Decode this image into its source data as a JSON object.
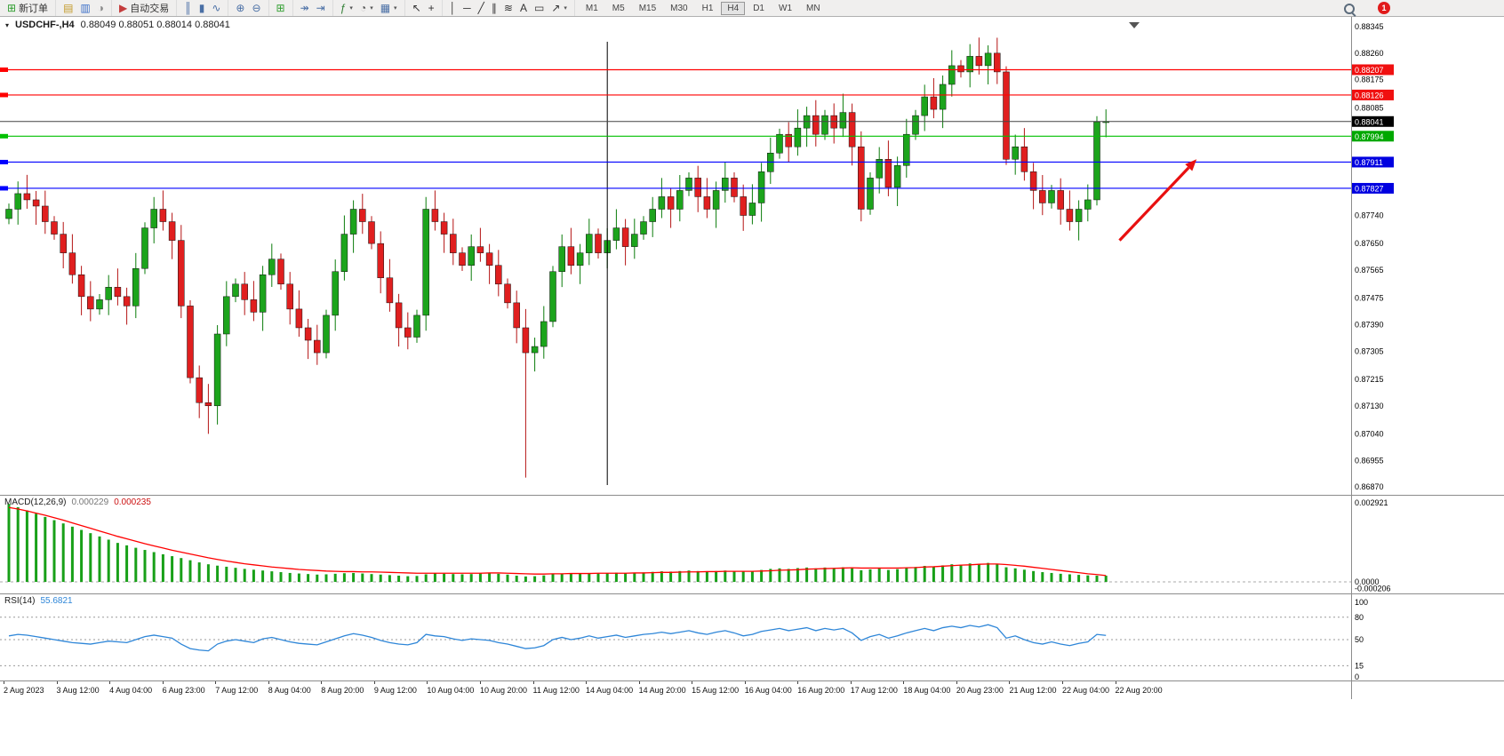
{
  "toolbar": {
    "notification_count": "1",
    "active_timeframe": "H4",
    "timeframes": [
      "M1",
      "M5",
      "M15",
      "M30",
      "H1",
      "H4",
      "D1",
      "W1",
      "MN"
    ],
    "groups": [
      {
        "items": [
          {
            "name": "new-order-button",
            "label": "新订单",
            "glyph": "⊞",
            "color": "#2f9e2f"
          }
        ]
      },
      {
        "items": [
          {
            "name": "charts-button",
            "glyph": "▤",
            "color": "#c39a2a"
          },
          {
            "name": "profiles-button",
            "glyph": "▥",
            "color": "#3b6fc9"
          },
          {
            "name": "refresh-button",
            "glyph": "◑",
            "color": "#8a8a8a"
          }
        ]
      },
      {
        "items": [
          {
            "name": "auto-trading-button",
            "label": "自动交易",
            "glyph": "▶",
            "color": "#c43c3c"
          }
        ]
      },
      {
        "items": [
          {
            "name": "bar-chart-button",
            "glyph": "║",
            "color": "#4a6fa5"
          },
          {
            "name": "candlestick-chart-button",
            "glyph": "▮",
            "color": "#4a6fa5"
          },
          {
            "name": "line-chart-button",
            "glyph": "∿",
            "color": "#4a6fa5"
          }
        ]
      },
      {
        "items": [
          {
            "name": "zoom-in-button",
            "glyph": "⊕",
            "color": "#4a6fa5"
          },
          {
            "name": "zoom-out-button",
            "glyph": "⊖",
            "color": "#4a6fa5"
          }
        ]
      },
      {
        "items": [
          {
            "name": "tile-windows-button",
            "glyph": "⊞",
            "color": "#2f9e2f"
          }
        ]
      },
      {
        "items": [
          {
            "name": "auto-scroll-button",
            "glyph": "↠",
            "color": "#4a6fa5"
          },
          {
            "name": "chart-shift-button",
            "glyph": "⇥",
            "color": "#4a6fa5"
          }
        ]
      },
      {
        "items": [
          {
            "name": "indicators-button",
            "glyph": "ƒ",
            "color": "#2e7d32",
            "dropdown": true
          },
          {
            "name": "periods-button",
            "glyph": "◔",
            "color": "#555555",
            "dropdown": true
          },
          {
            "name": "templates-button",
            "glyph": "▦",
            "color": "#4a6fa5",
            "dropdown": true
          }
        ]
      },
      {
        "items": [
          {
            "name": "cursor-button",
            "glyph": "↖",
            "color": "#333333"
          },
          {
            "name": "crosshair-button",
            "glyph": "+",
            "color": "#333333"
          }
        ]
      },
      {
        "items": [
          {
            "name": "vertical-line-button",
            "glyph": "│",
            "color": "#333333"
          },
          {
            "name": "horizontal-line-button",
            "glyph": "─",
            "color": "#333333"
          },
          {
            "name": "trendline-button",
            "glyph": "╱",
            "color": "#333333"
          },
          {
            "name": "channel-button",
            "glyph": "∥",
            "color": "#333333"
          },
          {
            "name": "fibonacci-button",
            "glyph": "≋",
            "color": "#333333"
          },
          {
            "name": "text-button",
            "glyph": "A",
            "color": "#333333"
          },
          {
            "name": "label-button",
            "glyph": "▭",
            "color": "#333333"
          },
          {
            "name": "arrows-button",
            "glyph": "↗",
            "color": "#333333",
            "dropdown": true
          }
        ]
      }
    ]
  },
  "chart_data": {
    "type": "candlestick",
    "symbol_title": "USDCHF-,H4",
    "timeframe": "H4",
    "ohlc_display": "0.88049  0.88051  0.88014  0.88041",
    "price_axis_labels": [
      "0.88345",
      "0.88260",
      "0.88175",
      "0.88085",
      "0.87740",
      "0.87650",
      "0.87565",
      "0.87475",
      "0.87390",
      "0.87305",
      "0.87215",
      "0.87130",
      "0.87040",
      "0.86955",
      "0.86870"
    ],
    "first_open": 0.8773,
    "wick": 0.0003,
    "closes": [
      0.8776,
      0.8781,
      0.8779,
      0.8777,
      0.8772,
      0.8768,
      0.8762,
      0.8755,
      0.8748,
      0.8744,
      0.8747,
      0.8751,
      0.8748,
      0.8745,
      0.8757,
      0.877,
      0.8776,
      0.8772,
      0.8766,
      0.8745,
      0.8722,
      0.8714,
      0.8713,
      0.8736,
      0.8748,
      0.8752,
      0.8747,
      0.8743,
      0.8755,
      0.876,
      0.8752,
      0.8744,
      0.8738,
      0.8734,
      0.873,
      0.8742,
      0.8756,
      0.8768,
      0.8776,
      0.8772,
      0.8765,
      0.8754,
      0.8746,
      0.8738,
      0.8735,
      0.8742,
      0.8776,
      0.8772,
      0.8768,
      0.8762,
      0.8758,
      0.8764,
      0.8762,
      0.8758,
      0.8752,
      0.8746,
      0.8738,
      0.873,
      0.8732,
      0.874,
      0.8756,
      0.8764,
      0.8758,
      0.8762,
      0.8768,
      0.8762,
      0.8766,
      0.877,
      0.8764,
      0.8768,
      0.8772,
      0.8776,
      0.878,
      0.8776,
      0.8782,
      0.8786,
      0.878,
      0.8776,
      0.8782,
      0.8786,
      0.878,
      0.8774,
      0.8778,
      0.8788,
      0.8794,
      0.88,
      0.8796,
      0.8802,
      0.8806,
      0.88,
      0.8806,
      0.8802,
      0.8807,
      0.8796,
      0.8776,
      0.8786,
      0.8792,
      0.8783,
      0.879,
      0.88,
      0.8806,
      0.8812,
      0.8808,
      0.8816,
      0.8822,
      0.882,
      0.8825,
      0.8822,
      0.8826,
      0.882,
      0.8792,
      0.8796,
      0.8788,
      0.8782,
      0.8778,
      0.8782,
      0.8776,
      0.8772,
      0.8776,
      0.8779,
      0.8804,
      0.88041
    ],
    "high_overrides": {
      "108": 0.88285
    },
    "low_overrides": {
      "22": 0.8704,
      "57": 0.869
    },
    "hlines": [
      {
        "price": 0.88207,
        "label": "0.88207",
        "color": "#ff0000",
        "tag": "#f01010"
      },
      {
        "price": 0.88126,
        "label": "0.88126",
        "color": "#ff0000",
        "tag": "#f01010"
      },
      {
        "price": 0.88041,
        "label": "0.88041",
        "color": "#444444",
        "tag": "#000000",
        "current": true
      },
      {
        "price": 0.87994,
        "label": "0.87994",
        "color": "#00c000",
        "tag": "#00a800"
      },
      {
        "price": 0.87911,
        "label": "0.87911",
        "color": "#0000ff",
        "tag": "#0000e0"
      },
      {
        "price": 0.87827,
        "label": "0.87827",
        "color": "#0000ff",
        "tag": "#0000e0"
      }
    ],
    "vline_bar_index": 66,
    "trend_arrow": {
      "from_bar": 122.5,
      "from_price": 0.8766,
      "to_bar": 131,
      "to_price": 0.8792,
      "color": "#e81010"
    },
    "macd": {
      "label": "MACD(12,26,9)",
      "value_main": "0.000229",
      "value_signal": "0.000235",
      "axis_max": "0.002921",
      "axis_zero": "0.0000",
      "axis_min": "-0.000206",
      "unit": 0.0001,
      "histogram": [
        28.8,
        27.6,
        26.4,
        25.2,
        24,
        22.8,
        21.6,
        20.4,
        19.2,
        18,
        16.8,
        15.6,
        14.4,
        13.5,
        12.6,
        11.8,
        11,
        10.2,
        9.5,
        8.8,
        8,
        7.2,
        6.5,
        6,
        5.6,
        5.2,
        4.8,
        4.5,
        4.2,
        3.9,
        3.6,
        3.3,
        3.1,
        2.9,
        2.7,
        2.8,
        3,
        3.2,
        3.3,
        3.1,
        2.9,
        2.7,
        2.5,
        2.3,
        2.1,
        2.2,
        2.8,
        3.2,
        3,
        2.9,
        2.8,
        2.9,
        3.1,
        3.3,
        3,
        2.7,
        2.3,
        2,
        2.1,
        2.4,
        2.8,
        3.1,
        3,
        3.1,
        3.3,
        3.1,
        3.2,
        3.4,
        3.2,
        3.3,
        3.5,
        3.7,
        3.9,
        3.8,
        4,
        4.2,
        4,
        3.8,
        4,
        4.2,
        4,
        3.8,
        4,
        4.4,
        4.8,
        5,
        4.8,
        5.1,
        5.3,
        5,
        5.3,
        5.1,
        5.4,
        5,
        4.3,
        4.6,
        4.9,
        4.4,
        4.7,
        5.1,
        5.5,
        5.9,
        5.6,
        6.1,
        6.5,
        6.3,
        6.8,
        6.6,
        7,
        6.4,
        5.4,
        5,
        4.5,
        4,
        3.6,
        3.3,
        3,
        2.8,
        2.6,
        2.4,
        2.3,
        2.29
      ],
      "signal": [
        27.5,
        26.9,
        26.2,
        25.4,
        24.6,
        23.7,
        22.8,
        21.8,
        20.8,
        19.8,
        18.8,
        17.8,
        16.8,
        15.9,
        15,
        14.1,
        13.3,
        12.5,
        11.7,
        11,
        10.3,
        9.6,
        8.9,
        8.3,
        7.7,
        7.2,
        6.7,
        6.3,
        5.9,
        5.5,
        5.2,
        4.9,
        4.6,
        4.4,
        4.2,
        4,
        3.9,
        3.8,
        3.8,
        3.7,
        3.7,
        3.6,
        3.5,
        3.4,
        3.3,
        3.2,
        3.2,
        3.2,
        3.2,
        3.2,
        3.2,
        3.2,
        3.2,
        3.3,
        3.3,
        3.2,
        3.1,
        3,
        2.9,
        2.9,
        3,
        3,
        3.1,
        3.1,
        3.1,
        3.2,
        3.2,
        3.2,
        3.2,
        3.3,
        3.3,
        3.4,
        3.5,
        3.5,
        3.6,
        3.7,
        3.7,
        3.8,
        3.8,
        3.9,
        3.9,
        3.9,
        3.9,
        4,
        4.1,
        4.3,
        4.4,
        4.5,
        4.7,
        4.8,
        4.9,
        5,
        5.1,
        5.2,
        5.1,
        5.1,
        5.1,
        5.1,
        5.1,
        5.2,
        5.3,
        5.5,
        5.6,
        5.8,
        6,
        6.2,
        6.3,
        6.5,
        6.6,
        6.6,
        6.4,
        6.1,
        5.8,
        5.4,
        5,
        4.6,
        4.2,
        3.8,
        3.4,
        3,
        2.7,
        2.35
      ]
    },
    "rsi": {
      "label": "RSI(14)",
      "value": "55.6821",
      "levels": [
        100,
        80,
        50,
        15,
        0
      ],
      "dashed_levels": [
        80,
        50,
        15
      ],
      "values": [
        55,
        57,
        56,
        54,
        52,
        50,
        48,
        46,
        45,
        44,
        46,
        48,
        47,
        46,
        50,
        54,
        56,
        54,
        52,
        44,
        38,
        36,
        35,
        44,
        48,
        50,
        48,
        46,
        51,
        53,
        50,
        47,
        45,
        44,
        43,
        47,
        51,
        55,
        58,
        56,
        53,
        49,
        46,
        44,
        43,
        46,
        57,
        55,
        54,
        51,
        49,
        51,
        50,
        49,
        46,
        44,
        41,
        38,
        39,
        42,
        50,
        53,
        50,
        52,
        55,
        52,
        54,
        56,
        53,
        55,
        57,
        58,
        60,
        58,
        60,
        62,
        59,
        57,
        60,
        62,
        59,
        55,
        57,
        61,
        63,
        65,
        62,
        64,
        66,
        62,
        65,
        63,
        65,
        59,
        49,
        54,
        57,
        52,
        55,
        59,
        62,
        65,
        62,
        66,
        68,
        66,
        69,
        67,
        70,
        66,
        52,
        55,
        50,
        46,
        44,
        47,
        44,
        42,
        45,
        47,
        57,
        55.68
      ]
    },
    "time_labels": [
      "2 Aug 2023",
      "3 Aug 12:00",
      "4 Aug 04:00",
      "6 Aug 23:00",
      "7 Aug 12:00",
      "8 Aug 04:00",
      "8 Aug 20:00",
      "9 Aug 12:00",
      "10 Aug 04:00",
      "10 Aug 20:00",
      "11 Aug 12:00",
      "14 Aug 04:00",
      "14 Aug 20:00",
      "15 Aug 12:00",
      "16 Aug 04:00",
      "16 Aug 20:00",
      "17 Aug 12:00",
      "18 Aug 04:00",
      "20 Aug 23:00",
      "21 Aug 12:00",
      "22 Aug 04:00",
      "22 Aug 20:00"
    ]
  }
}
